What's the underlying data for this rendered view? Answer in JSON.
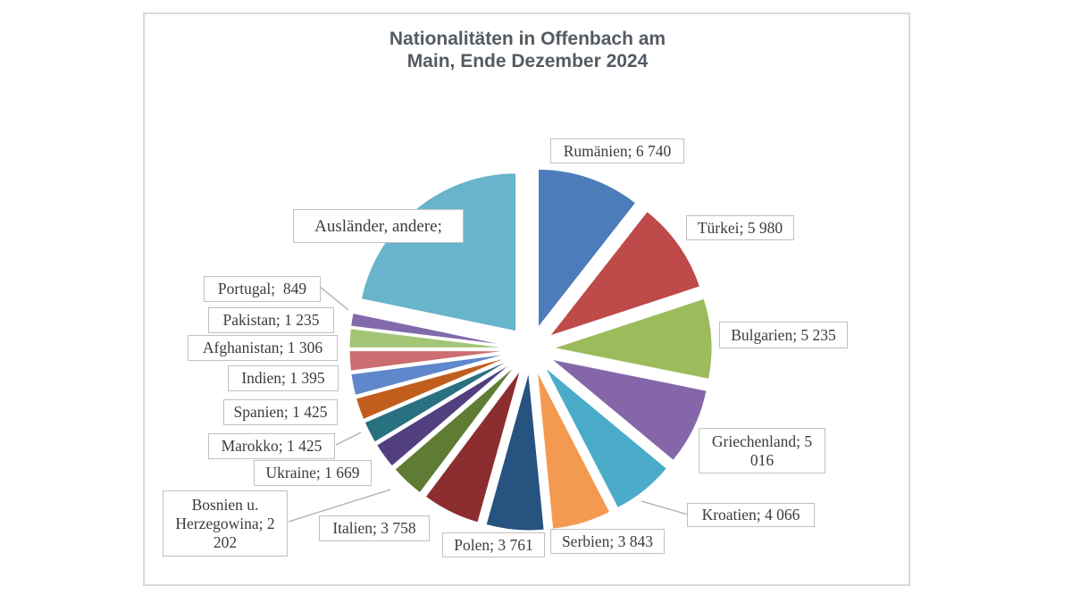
{
  "theme": {
    "background": "#ffffff",
    "frame_border_color": "#d9d9d9",
    "title_color": "#545b63",
    "label_text_color": "#3c3c3c",
    "label_border_color": "#c0c0c0",
    "leader_line_color": "#aeaeae"
  },
  "chart_data": {
    "type": "pie",
    "title": "Nationalitäten in Offenbach am\nMain, Ende Dezember 2024",
    "exploded": true,
    "start_angle_deg": 0,
    "direction": "clockwise",
    "legend_position": "none",
    "label_style": "name; value in boxed callouts, thousands separated by space",
    "slices": [
      {
        "key": "rumaenien",
        "name": "Rumänien",
        "value": 6740,
        "value_shown": true,
        "display_label": "Rumänien; 6 740",
        "color": "#4d7cba"
      },
      {
        "key": "tuerkei",
        "name": "Türkei",
        "value": 5980,
        "value_shown": true,
        "display_label": "Türkei; 5 980",
        "color": "#bf4a4a"
      },
      {
        "key": "bulgarien",
        "name": "Bulgarien",
        "value": 5235,
        "value_shown": true,
        "display_label": "Bulgarien; 5 235",
        "color": "#9cbc5c"
      },
      {
        "key": "griechenland",
        "name": "Griechenland",
        "value": 5016,
        "value_shown": true,
        "display_label": "Griechenland; 5\n016",
        "color": "#8566a9"
      },
      {
        "key": "kroatien",
        "name": "Kroatien",
        "value": 4066,
        "value_shown": true,
        "display_label": "Kroatien; 4 066",
        "color": "#4aacc9"
      },
      {
        "key": "serbien",
        "name": "Serbien",
        "value": 3843,
        "value_shown": true,
        "display_label": "Serbien; 3 843",
        "color": "#f49950"
      },
      {
        "key": "polen",
        "name": "Polen",
        "value": 3761,
        "value_shown": true,
        "display_label": "Polen; 3 761",
        "color": "#275380"
      },
      {
        "key": "italien",
        "name": "Italien",
        "value": 3758,
        "value_shown": true,
        "display_label": "Italien; 3 758",
        "color": "#8c2e2f"
      },
      {
        "key": "bosnien-herzegowina",
        "name": "Bosnien u. Herzegowina",
        "value": 2202,
        "value_shown": true,
        "display_label": "Bosnien u.\nHerzegowina; 2\n202",
        "color": "#5e7c33"
      },
      {
        "key": "ukraine",
        "name": "Ukraine",
        "value": 1669,
        "value_shown": true,
        "display_label": "Ukraine; 1 669",
        "color": "#523f80"
      },
      {
        "key": "marokko",
        "name": "Marokko",
        "value": 1425,
        "value_shown": true,
        "display_label": "Marokko; 1 425",
        "color": "#297180"
      },
      {
        "key": "spanien",
        "name": "Spanien",
        "value": 1425,
        "value_shown": true,
        "display_label": "Spanien; 1 425",
        "color": "#c25e1d"
      },
      {
        "key": "indien",
        "name": "Indien",
        "value": 1395,
        "value_shown": true,
        "display_label": "Indien; 1 395",
        "color": "#5f87cb"
      },
      {
        "key": "afghanistan",
        "name": "Afghanistan",
        "value": 1306,
        "value_shown": true,
        "display_label": "Afghanistan; 1 306",
        "color": "#cc6e71"
      },
      {
        "key": "pakistan",
        "name": "Pakistan",
        "value": 1235,
        "value_shown": true,
        "display_label": "Pakistan; 1 235",
        "color": "#a2c576"
      },
      {
        "key": "portugal",
        "name": "Portugal",
        "value": 849,
        "value_shown": true,
        "display_label": "Portugal;  849",
        "color": "#8269ac"
      },
      {
        "key": "auslaender-andere",
        "name": "Ausländer, andere",
        "value": 13845,
        "value_shown": false,
        "display_label": "Ausländer, andere;",
        "color": "#67b4cb"
      }
    ]
  }
}
